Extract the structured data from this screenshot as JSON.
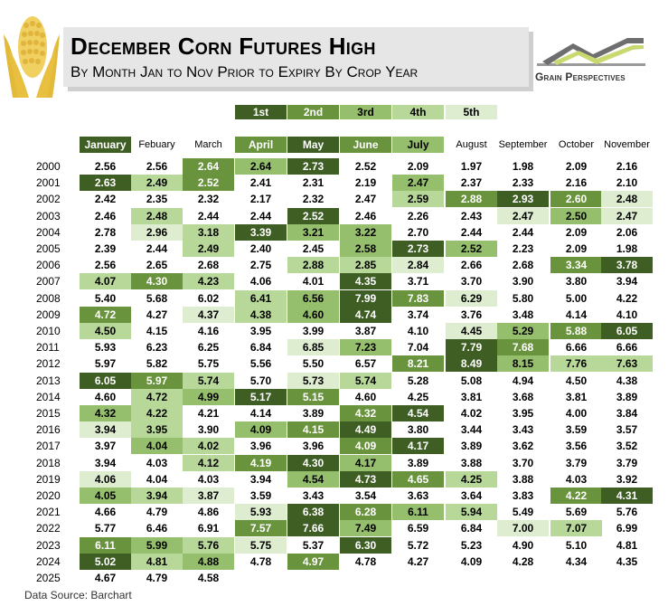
{
  "header": {
    "title": "December Corn Futures High",
    "subtitle": "By Month Jan to Nov Prior to Expiry By Crop Year",
    "logo_text": "Grain Perspectives"
  },
  "legend": [
    {
      "label": "1st",
      "color": "#3f5e24",
      "text_color": "#ffffff"
    },
    {
      "label": "2nd",
      "color": "#69933d",
      "text_color": "#ffffff"
    },
    {
      "label": "3rd",
      "color": "#96bf6d",
      "text_color": "#000000"
    },
    {
      "label": "4th",
      "color": "#b8d89a",
      "text_color": "#000000"
    },
    {
      "label": "5th",
      "color": "#deecd0",
      "text_color": "#000000"
    }
  ],
  "source": "Data Source: Barchart",
  "chart_data": {
    "type": "table",
    "title": "December Corn Futures High",
    "subtitle": "By Month Jan to Nov Prior to Expiry By Crop Year",
    "columns": [
      "January",
      "Febuary",
      "March",
      "April",
      "May",
      "June",
      "July",
      "August",
      "September",
      "October",
      "November"
    ],
    "column_ranks": [
      1,
      0,
      0,
      2,
      1,
      2,
      3,
      0,
      0,
      0,
      0
    ],
    "rows": [
      {
        "year": "2000",
        "values": [
          2.56,
          2.56,
          2.64,
          2.64,
          2.73,
          2.52,
          2.09,
          1.97,
          1.98,
          2.09,
          2.16
        ],
        "ranks": [
          0,
          0,
          2,
          3,
          1,
          0,
          0,
          0,
          0,
          0,
          0
        ]
      },
      {
        "year": "2001",
        "values": [
          2.63,
          2.49,
          2.52,
          2.41,
          2.31,
          2.19,
          2.47,
          2.37,
          2.33,
          2.16,
          2.1
        ],
        "ranks": [
          1,
          4,
          2,
          0,
          0,
          0,
          3,
          0,
          0,
          0,
          0
        ]
      },
      {
        "year": "2002",
        "values": [
          2.42,
          2.35,
          2.32,
          2.17,
          2.32,
          2.47,
          2.59,
          2.88,
          2.93,
          2.6,
          2.48
        ],
        "ranks": [
          0,
          0,
          0,
          0,
          0,
          0,
          4,
          2,
          1,
          2,
          5
        ]
      },
      {
        "year": "2003",
        "values": [
          2.46,
          2.48,
          2.44,
          2.44,
          2.52,
          2.46,
          2.26,
          2.43,
          2.47,
          2.5,
          2.47
        ],
        "ranks": [
          0,
          4,
          0,
          0,
          1,
          0,
          0,
          0,
          5,
          3,
          5
        ]
      },
      {
        "year": "2004",
        "values": [
          2.78,
          2.96,
          3.18,
          3.39,
          3.21,
          3.22,
          2.7,
          2.44,
          2.44,
          2.09,
          2.06
        ],
        "ranks": [
          0,
          5,
          4,
          1,
          3,
          3,
          0,
          0,
          0,
          0,
          0
        ]
      },
      {
        "year": "2005",
        "values": [
          2.39,
          2.44,
          2.49,
          2.4,
          2.45,
          2.58,
          2.73,
          2.52,
          2.23,
          2.09,
          1.98
        ],
        "ranks": [
          0,
          0,
          4,
          0,
          0,
          3,
          1,
          3,
          0,
          0,
          0
        ]
      },
      {
        "year": "2006",
        "values": [
          2.56,
          2.65,
          2.68,
          2.75,
          2.88,
          2.85,
          2.84,
          2.66,
          2.68,
          3.34,
          3.78
        ],
        "ranks": [
          0,
          0,
          0,
          0,
          4,
          4,
          5,
          0,
          0,
          2,
          1
        ]
      },
      {
        "year": "2007",
        "values": [
          4.07,
          4.3,
          4.23,
          4.06,
          4.01,
          4.35,
          3.71,
          3.7,
          3.9,
          3.8,
          3.94
        ],
        "ranks": [
          4,
          2,
          4,
          0,
          0,
          1,
          0,
          0,
          0,
          0,
          0
        ]
      },
      {
        "year": "2008",
        "values": [
          5.4,
          5.68,
          6.02,
          6.41,
          6.56,
          7.99,
          7.83,
          6.29,
          5.8,
          5.0,
          4.22
        ],
        "ranks": [
          0,
          0,
          0,
          4,
          3,
          1,
          2,
          5,
          0,
          0,
          0
        ]
      },
      {
        "year": "2009",
        "values": [
          4.72,
          4.27,
          4.37,
          4.38,
          4.6,
          4.74,
          3.74,
          3.76,
          3.48,
          4.14,
          4.1
        ],
        "ranks": [
          2,
          0,
          5,
          4,
          3,
          1,
          0,
          0,
          0,
          0,
          0
        ]
      },
      {
        "year": "2010",
        "values": [
          4.5,
          4.15,
          4.16,
          3.95,
          3.99,
          3.87,
          4.1,
          4.45,
          5.29,
          5.88,
          6.05
        ],
        "ranks": [
          4,
          0,
          0,
          0,
          0,
          0,
          0,
          5,
          3,
          2,
          1
        ]
      },
      {
        "year": "2011",
        "values": [
          5.93,
          6.23,
          6.25,
          6.84,
          6.85,
          7.23,
          7.04,
          7.79,
          7.68,
          6.66,
          6.66
        ],
        "ranks": [
          0,
          0,
          0,
          0,
          5,
          3,
          0,
          1,
          2,
          0,
          0
        ]
      },
      {
        "year": "2012",
        "values": [
          5.97,
          5.82,
          5.75,
          5.56,
          5.5,
          6.57,
          8.21,
          8.49,
          8.15,
          7.76,
          7.63
        ],
        "ranks": [
          0,
          0,
          0,
          0,
          0,
          0,
          2,
          1,
          3,
          4,
          4
        ]
      },
      {
        "year": "2013",
        "values": [
          6.05,
          5.97,
          5.74,
          5.7,
          5.73,
          5.74,
          5.28,
          5.08,
          4.94,
          4.5,
          4.38
        ],
        "ranks": [
          1,
          2,
          4,
          0,
          5,
          4,
          0,
          0,
          0,
          0,
          0
        ]
      },
      {
        "year": "2014",
        "values": [
          4.6,
          4.72,
          4.99,
          5.17,
          5.15,
          4.6,
          4.25,
          3.81,
          3.68,
          3.81,
          3.89
        ],
        "ranks": [
          0,
          4,
          3,
          1,
          2,
          0,
          0,
          0,
          0,
          0,
          0
        ]
      },
      {
        "year": "2015",
        "values": [
          4.32,
          4.22,
          4.21,
          4.14,
          3.89,
          4.32,
          4.54,
          4.02,
          3.95,
          4.0,
          3.84
        ],
        "ranks": [
          3,
          4,
          0,
          0,
          0,
          2,
          1,
          0,
          0,
          0,
          0
        ]
      },
      {
        "year": "2016",
        "values": [
          3.94,
          3.95,
          3.9,
          4.09,
          4.15,
          4.49,
          3.8,
          3.44,
          3.43,
          3.59,
          3.57
        ],
        "ranks": [
          5,
          4,
          0,
          3,
          2,
          1,
          0,
          0,
          0,
          0,
          0
        ]
      },
      {
        "year": "2017",
        "values": [
          3.97,
          4.04,
          4.02,
          3.96,
          3.96,
          4.09,
          4.17,
          3.89,
          3.62,
          3.56,
          3.52
        ],
        "ranks": [
          0,
          3,
          4,
          0,
          0,
          2,
          1,
          0,
          0,
          0,
          0
        ]
      },
      {
        "year": "2018",
        "values": [
          3.94,
          4.03,
          4.12,
          4.19,
          4.3,
          4.17,
          3.89,
          3.88,
          3.7,
          3.79,
          3.79
        ],
        "ranks": [
          0,
          0,
          4,
          2,
          1,
          3,
          0,
          0,
          0,
          0,
          0
        ]
      },
      {
        "year": "2019",
        "values": [
          4.06,
          4.04,
          4.03,
          3.94,
          4.54,
          4.73,
          4.65,
          4.25,
          3.88,
          4.03,
          3.92
        ],
        "ranks": [
          5,
          0,
          0,
          0,
          3,
          1,
          2,
          4,
          0,
          0,
          0
        ]
      },
      {
        "year": "2020",
        "values": [
          4.05,
          3.94,
          3.87,
          3.59,
          3.43,
          3.54,
          3.63,
          3.64,
          3.83,
          4.22,
          4.31
        ],
        "ranks": [
          3,
          4,
          5,
          0,
          0,
          0,
          0,
          0,
          0,
          2,
          1
        ]
      },
      {
        "year": "2021",
        "values": [
          4.66,
          4.79,
          4.86,
          5.93,
          6.38,
          6.28,
          6.11,
          5.94,
          5.49,
          5.69,
          5.76
        ],
        "ranks": [
          0,
          0,
          0,
          5,
          1,
          2,
          3,
          4,
          0,
          0,
          0
        ]
      },
      {
        "year": "2022",
        "values": [
          5.77,
          6.46,
          6.91,
          7.57,
          7.66,
          7.49,
          6.59,
          6.84,
          7.0,
          7.07,
          6.99
        ],
        "ranks": [
          0,
          0,
          0,
          2,
          1,
          3,
          0,
          0,
          5,
          4,
          0
        ]
      },
      {
        "year": "2023",
        "values": [
          6.11,
          5.99,
          5.76,
          5.75,
          5.37,
          6.3,
          5.72,
          5.23,
          4.9,
          5.1,
          4.81
        ],
        "ranks": [
          2,
          3,
          4,
          5,
          0,
          1,
          0,
          0,
          0,
          0,
          0
        ]
      },
      {
        "year": "2024",
        "values": [
          5.02,
          4.81,
          4.88,
          4.78,
          4.97,
          4.78,
          4.27,
          4.09,
          4.28,
          4.34,
          4.35
        ],
        "ranks": [
          1,
          4,
          3,
          0,
          2,
          0,
          0,
          0,
          0,
          0,
          0
        ]
      },
      {
        "year": "2025",
        "values": [
          4.67,
          4.79,
          4.58
        ],
        "ranks": [
          0,
          0,
          0
        ]
      }
    ]
  }
}
